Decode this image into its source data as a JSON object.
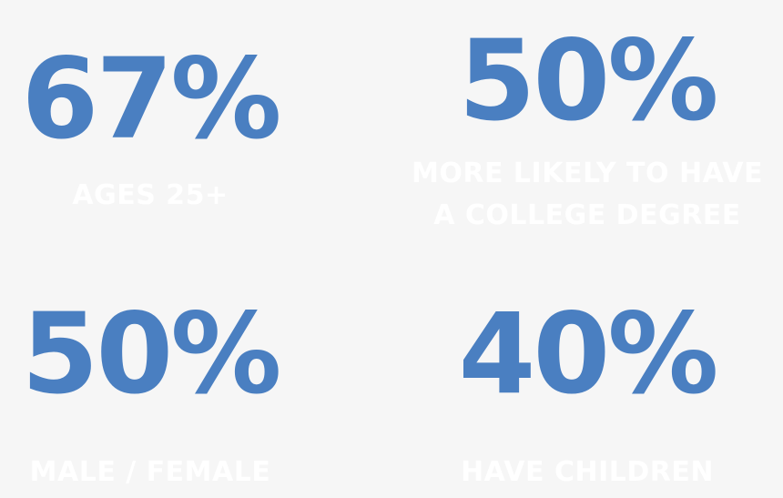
{
  "stats": [
    {
      "value": "67%",
      "label_lines": [
        "AGES 25+"
      ]
    },
    {
      "value": "50%",
      "label_lines": [
        "MORE LIKELY TO HAVE",
        "A COLLEGE DEGREE"
      ]
    },
    {
      "value": "50%",
      "label_lines": [
        "MALE / FEMALE"
      ]
    },
    {
      "value": "40%",
      "label_lines": [
        "HAVE CHILDREN"
      ]
    }
  ],
  "colors": {
    "background": "#f6f6f6",
    "value": "#4a7fc1",
    "label": "#ffffff"
  }
}
